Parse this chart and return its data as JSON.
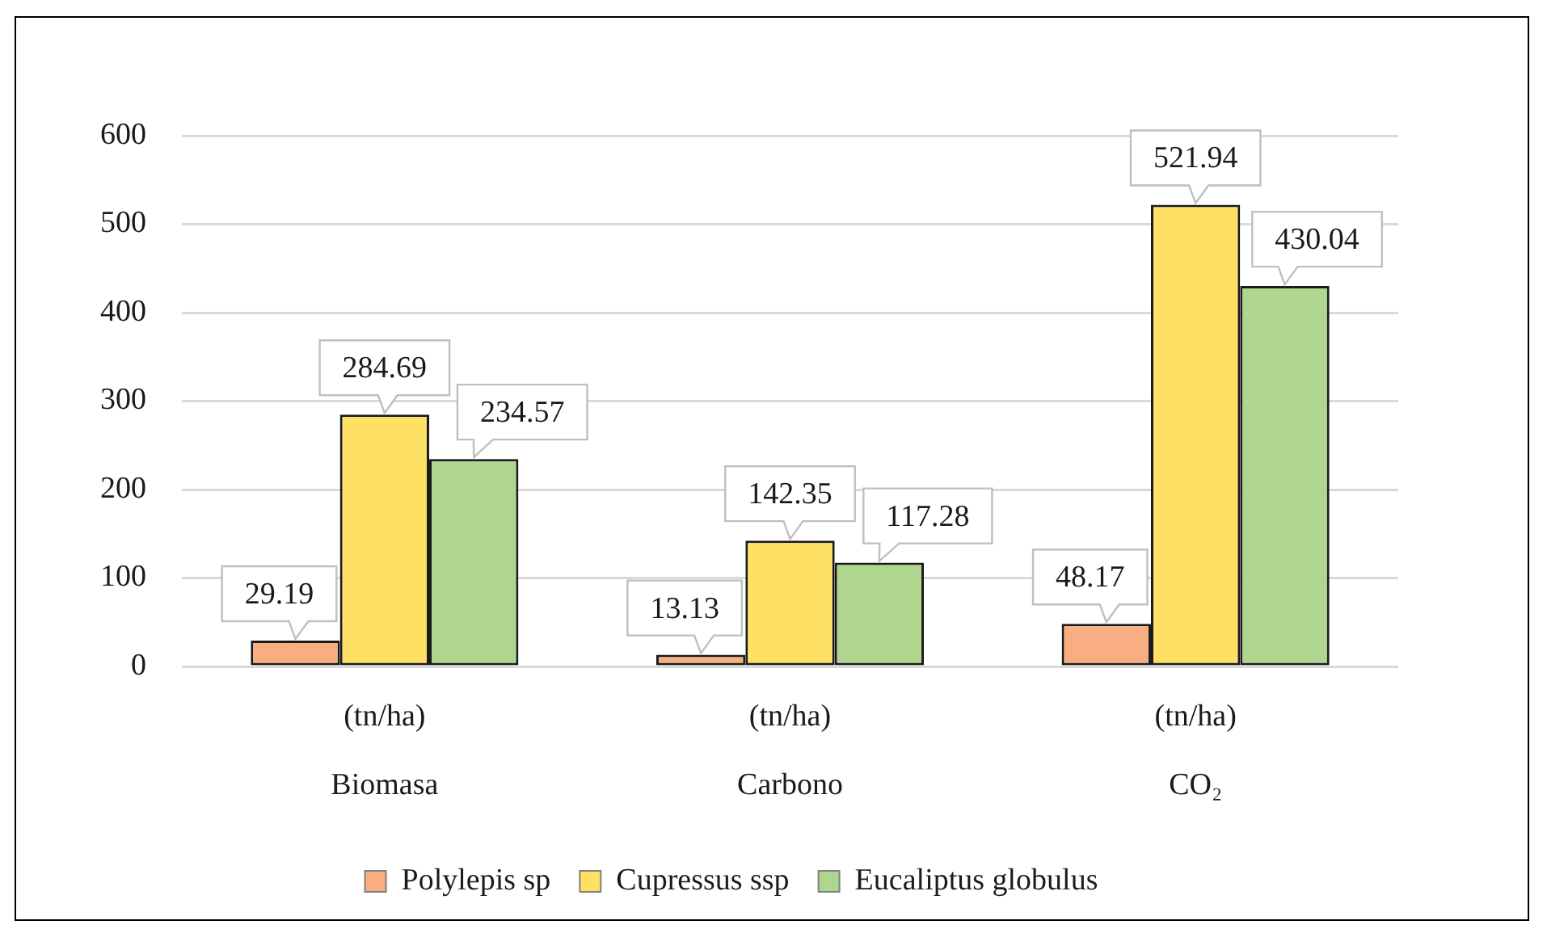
{
  "chart_data": {
    "type": "bar",
    "categories": [
      "(tn/ha)\nBiomasa",
      "(tn/ha)\nCarbono",
      "(tn/ha)\nCO₂"
    ],
    "series": [
      {
        "name": "Polylepis sp",
        "color": "#f8ae80",
        "values": [
          29.19,
          13.13,
          48.17
        ]
      },
      {
        "name": "Cupressus ssp",
        "color": "#fde064",
        "values": [
          284.69,
          142.35,
          521.94
        ]
      },
      {
        "name": "Eucaliptus globulus",
        "color": "#aed68f",
        "values": [
          234.57,
          117.28,
          430.04
        ]
      }
    ],
    "ylim": [
      0,
      600
    ],
    "yticks": [
      0,
      100,
      200,
      300,
      400,
      500,
      600
    ],
    "grid": "y",
    "legend": "bottom",
    "data_labels": true
  }
}
